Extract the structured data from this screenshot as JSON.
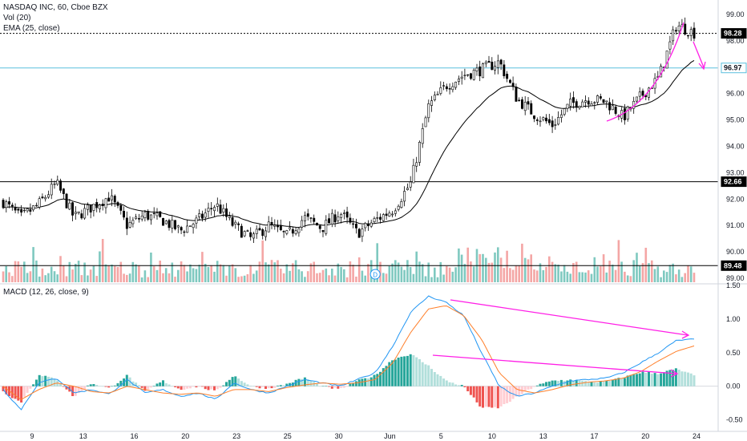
{
  "colors": {
    "up": "#26a69a",
    "down": "#ef5350",
    "candle": "#000000",
    "ema": "#000000",
    "vol_up": "#7fc9c0",
    "vol_down": "#f4a6a5",
    "macd_line": "#2196f3",
    "signal_line": "#ff7f2a",
    "hist_pos_strong": "#26a69a",
    "hist_pos_weak": "#b2dfdb",
    "hist_neg_strong": "#ef5350",
    "hist_neg_weak": "#ffcdd2",
    "level_black": "#000000",
    "level_cyan": "#5bc0de",
    "annotation": "#ff1fe6"
  },
  "legend": {
    "title": "NASDAQ INC, 60, Cboe BZX",
    "vol": "Vol (20)",
    "ema": "EMA (25, close)",
    "macd": "MACD (12, 26, close, 9)"
  },
  "price_axis": {
    "ticks": [
      "99.00",
      "98.00",
      "97.00",
      "96.00",
      "95.00",
      "94.00",
      "93.00",
      "92.00",
      "91.00",
      "90.00",
      "89.00"
    ],
    "range": [
      88.85,
      99.3
    ]
  },
  "macd_axis": {
    "ticks": [
      "1.50",
      "1.00",
      "0.50",
      "0.00",
      "-0.50"
    ],
    "range": [
      -0.6,
      1.5
    ]
  },
  "time_axis": {
    "labels": [
      "9",
      "13",
      "16",
      "20",
      "23",
      "25",
      "30",
      "Jun",
      "5",
      "10",
      "13",
      "17",
      "20",
      "24"
    ]
  },
  "levels": [
    {
      "price": 98.28,
      "label": "98.28",
      "style": "dotted",
      "color_key": "level_black"
    },
    {
      "price": 96.97,
      "label": "96.97",
      "style": "solid",
      "color_key": "level_cyan"
    },
    {
      "price": 92.66,
      "label": "92.66",
      "style": "solid",
      "color_key": "level_black"
    },
    {
      "price": 89.48,
      "label": "89.48",
      "style": "solid",
      "color_key": "level_black"
    }
  ],
  "dividend_marker": {
    "label": "D",
    "day_index": 7.0
  },
  "chart_data": [
    {
      "type": "candlestick",
      "title": "NASDAQ INC, 60, Cboe BZX",
      "indicators": [
        "Vol (20)",
        "EMA (25, close)"
      ],
      "ylim": [
        88.85,
        99.3
      ],
      "key_prices": [
        91.9,
        91.3,
        91.8,
        92.6,
        91.3,
        91.7,
        92.1,
        91.0,
        91.4,
        91.2,
        90.8,
        91.2,
        91.8,
        91.0,
        90.5,
        91.0,
        90.6,
        91.3,
        90.9,
        91.5,
        90.7,
        91.2,
        91.6,
        92.6,
        95.5,
        96.3,
        96.7,
        96.9,
        97.2,
        95.8,
        95.2,
        94.8,
        95.6,
        95.8,
        95.7,
        95.1,
        95.9,
        96.6,
        98.6,
        98.3
      ]
    },
    {
      "type": "macd",
      "title": "MACD (12, 26, close, 9)",
      "ylim": [
        -0.6,
        1.5
      ],
      "macd_key": [
        -0.05,
        -0.35,
        0.05,
        0.12,
        -0.1,
        -0.05,
        -0.12,
        0.1,
        -0.1,
        -0.05,
        -0.15,
        -0.1,
        -0.2,
        0.05,
        -0.05,
        -0.1,
        0.0,
        0.1,
        0.05,
        0.0,
        0.1,
        0.2,
        0.6,
        1.1,
        1.34,
        1.25,
        1.05,
        0.5,
        0.0,
        -0.15,
        -0.1,
        0.0,
        0.08,
        0.1,
        0.12,
        0.2,
        0.35,
        0.5,
        0.68,
        0.7
      ],
      "signal_key": [
        0.0,
        -0.2,
        -0.05,
        0.05,
        0.0,
        -0.08,
        -0.1,
        0.0,
        -0.05,
        -0.1,
        -0.12,
        -0.1,
        -0.15,
        -0.05,
        -0.05,
        -0.08,
        -0.02,
        0.02,
        0.05,
        0.03,
        0.05,
        0.1,
        0.35,
        0.8,
        1.15,
        1.2,
        1.05,
        0.7,
        0.2,
        -0.05,
        -0.1,
        -0.05,
        0.02,
        0.06,
        0.08,
        0.12,
        0.22,
        0.38,
        0.52,
        0.6
      ]
    }
  ]
}
